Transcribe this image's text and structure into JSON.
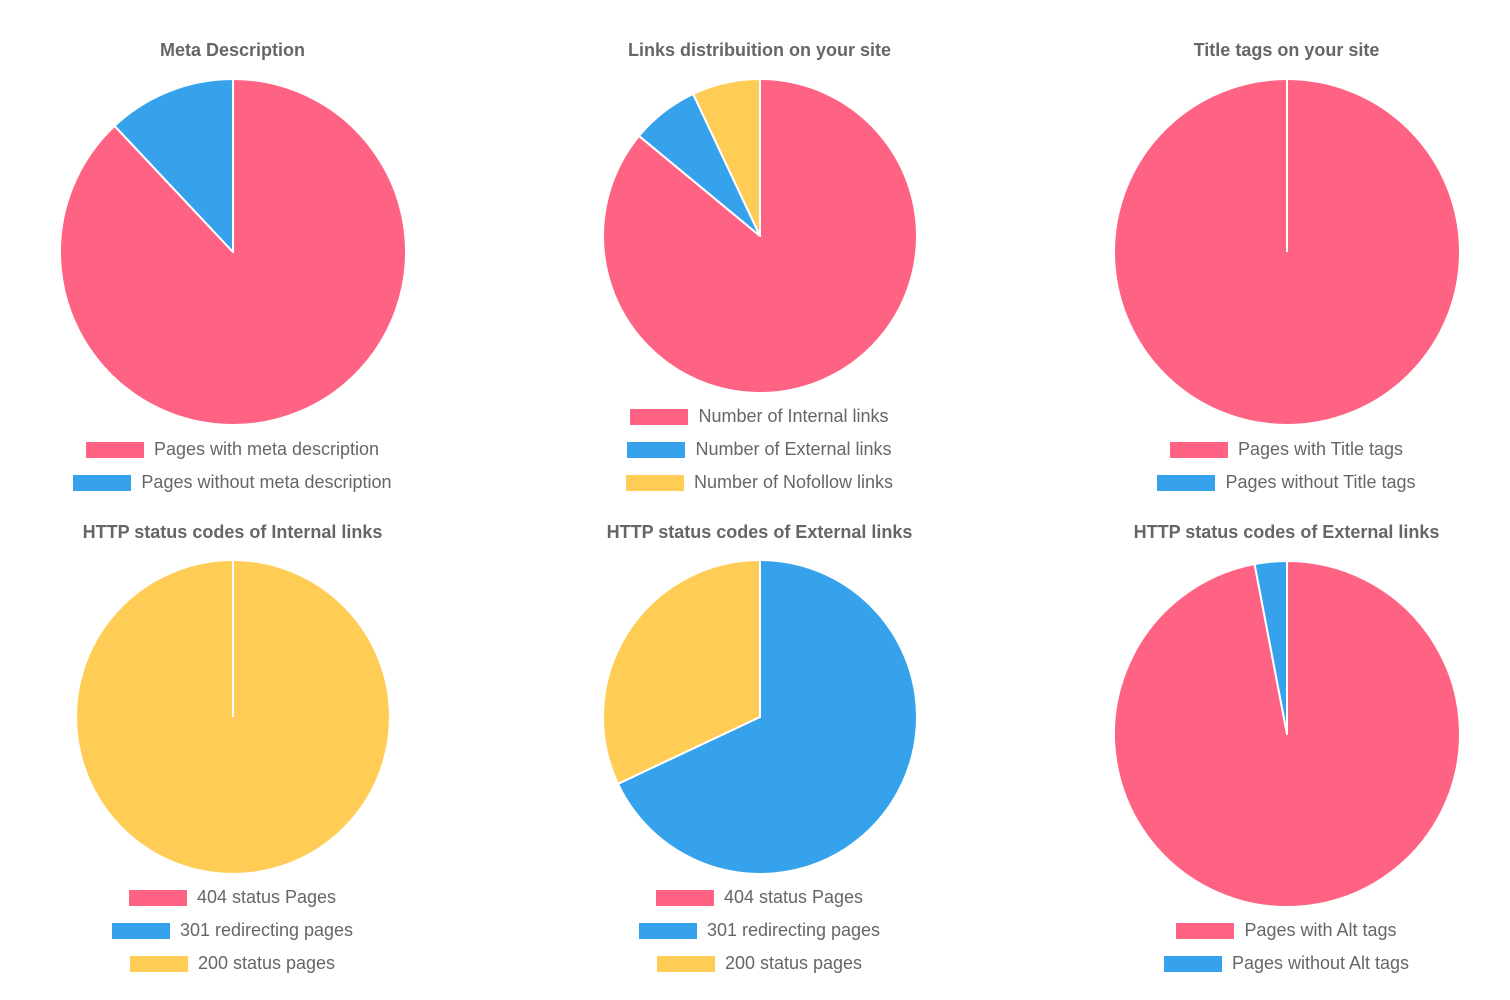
{
  "colors": {
    "red": "#ff6384",
    "blue": "#36a2eb",
    "yellow": "#ffcd56",
    "text": "#666666"
  },
  "chart_data": [
    {
      "type": "pie",
      "title": "Meta Description",
      "categories": [
        "Pages with meta description",
        "Pages without meta description"
      ],
      "values": [
        88,
        12
      ],
      "colors": [
        "#ff6384",
        "#36a2eb"
      ],
      "legend_position": "bottom"
    },
    {
      "type": "pie",
      "title": "Links distribuition on your site",
      "categories": [
        "Number of Internal links",
        "Number of External links",
        "Number of Nofollow links"
      ],
      "values": [
        86,
        7,
        7
      ],
      "colors": [
        "#ff6384",
        "#36a2eb",
        "#ffcd56"
      ],
      "legend_position": "bottom"
    },
    {
      "type": "pie",
      "title": "Title tags on your site",
      "categories": [
        "Pages with Title tags",
        "Pages without Title tags"
      ],
      "values": [
        100,
        0
      ],
      "colors": [
        "#ff6384",
        "#36a2eb"
      ],
      "legend_position": "bottom"
    },
    {
      "type": "pie",
      "title": "HTTP status codes of Internal links",
      "categories": [
        "404 status Pages",
        "301 redirecting pages",
        "200 status pages"
      ],
      "values": [
        0,
        0,
        100
      ],
      "colors": [
        "#ff6384",
        "#36a2eb",
        "#ffcd56"
      ],
      "legend_position": "bottom"
    },
    {
      "type": "pie",
      "title": "HTTP status codes of External links",
      "categories": [
        "404 status Pages",
        "301 redirecting pages",
        "200 status pages"
      ],
      "values": [
        0,
        68,
        32
      ],
      "colors": [
        "#ff6384",
        "#36a2eb",
        "#ffcd56"
      ],
      "legend_position": "bottom"
    },
    {
      "type": "pie",
      "title": "HTTP status codes of External links",
      "categories": [
        "Pages with Alt tags",
        "Pages without Alt tags"
      ],
      "values": [
        97,
        3
      ],
      "colors": [
        "#ff6384",
        "#36a2eb"
      ],
      "legend_position": "bottom"
    }
  ]
}
